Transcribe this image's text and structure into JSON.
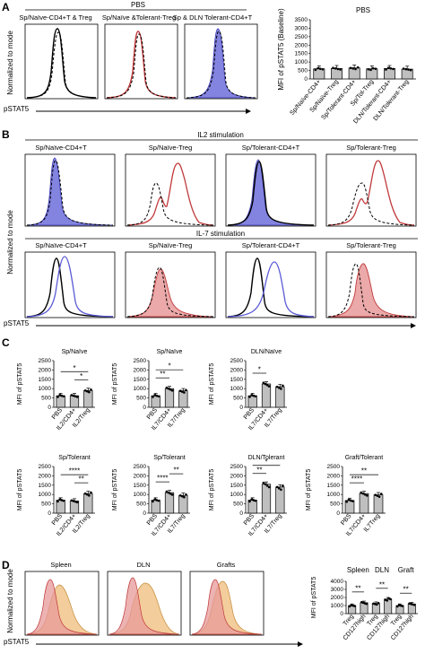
{
  "panel_labels": {
    "a": "A",
    "b": "B",
    "c": "C",
    "d": "D"
  },
  "axis_text": {
    "normalized_to_mode": "Normalized to mode",
    "pstat5": "pSTAT5",
    "mfi_pstat5": "MFI of pSTAT5",
    "mfi_pstat5_baseline": "MFI of pSTAT5 (Baseline)"
  },
  "panel_a": {
    "group_title": "PBS",
    "histograms": [
      {
        "title": "Sp/Naïve-CD4+T & Treg"
      },
      {
        "title": "Sp/Naïve &Tolerant-Treg"
      },
      {
        "title": "Sp & DLN Tolerant-CD4+T"
      }
    ]
  },
  "panel_b": {
    "row1_title": "IL2 stimulation",
    "row2_title": "IL-7 stimulation",
    "row1": [
      {
        "title": "Sp/Naïve-CD4+T"
      },
      {
        "title": "Sp/Naïve-Treg"
      },
      {
        "title": "Sp/Tolerant-CD4+T"
      },
      {
        "title": "Sp/Tolerant-Treg"
      }
    ],
    "row2": [
      {
        "title": "Sp/Naïve-CD4+T"
      },
      {
        "title": "Sp/Naïve-Treg"
      },
      {
        "title": "Sp/Tolerant-CD4+T"
      },
      {
        "title": "Sp/Tolerant-Treg"
      }
    ]
  },
  "panel_d": {
    "histograms": [
      {
        "title": "Spleen"
      },
      {
        "title": "DLN"
      },
      {
        "title": "Grafts"
      }
    ]
  },
  "colors": {
    "blue_fill": "#5a5ad6",
    "red": "#c0393b",
    "red_fill": "#e79a9a",
    "orange_fill": "#f1c48a",
    "bar": "#bfbfbf"
  },
  "chart_data": [
    {
      "type": "bar",
      "title": "PBS",
      "ylabel": "MFI of pSTAT5 (Baseline)",
      "ylim": [
        0,
        3500
      ],
      "yticks": [
        0,
        500,
        1000,
        1500,
        2000,
        2500,
        3000,
        3500
      ],
      "categories": [
        "Sp/Naïve-CD4+",
        "Sp/Naïve-Treg",
        "Sp/Tolerant-CD4+",
        "Sp/Tol-Treg",
        "DLN/Tolerant-CD4+",
        "DLN/Tolerant-Treg"
      ],
      "values": [
        600,
        620,
        650,
        600,
        620,
        580
      ],
      "sig": []
    },
    {
      "type": "bar",
      "title": "Sp/Naïve",
      "ylabel": "MFI of pSTAT5",
      "ylim": [
        0,
        2500
      ],
      "yticks": [
        0,
        500,
        1000,
        1500,
        2000,
        2500
      ],
      "categories": [
        "PBS",
        "IL2/CD4+",
        "IL2/Treg"
      ],
      "values": [
        620,
        620,
        900
      ],
      "sig": [
        {
          "from": 0,
          "to": 2,
          "label": "*",
          "level": 1
        },
        {
          "from": 1,
          "to": 2,
          "label": "*",
          "level": 0
        }
      ]
    },
    {
      "type": "bar",
      "title": "Sp/Naïve",
      "ylabel": "MFI of pSTAT5",
      "ylim": [
        0,
        2500
      ],
      "yticks": [
        0,
        500,
        1000,
        1500,
        2000,
        2500
      ],
      "categories": [
        "PBS",
        "IL7/CD4+",
        "IL7/Treg"
      ],
      "values": [
        620,
        1000,
        880
      ],
      "sig": [
        {
          "from": 0,
          "to": 1,
          "label": "**",
          "level": 0
        },
        {
          "from": 0,
          "to": 2,
          "label": "*",
          "level": 1
        }
      ]
    },
    {
      "type": "bar",
      "title": "DLN/Naïve",
      "ylabel": "MFI of pSTAT5",
      "ylim": [
        0,
        2500
      ],
      "yticks": [
        0,
        500,
        1000,
        1500,
        2000,
        2500
      ],
      "categories": [
        "PBS",
        "IL7/CD4+",
        "IL7/Treg"
      ],
      "values": [
        620,
        1250,
        1100
      ],
      "sig": [
        {
          "from": 0,
          "to": 1,
          "label": "*",
          "level": 0
        }
      ]
    },
    {
      "type": "bar",
      "title": "Sp/Tolerant",
      "ylabel": "MFI of pSTAT5",
      "ylim": [
        0,
        2500
      ],
      "yticks": [
        0,
        500,
        1000,
        1500,
        2000,
        2500
      ],
      "categories": [
        "PBS",
        "IL2/CD4+",
        "IL2/Treg"
      ],
      "values": [
        700,
        650,
        1050
      ],
      "sig": [
        {
          "from": 0,
          "to": 2,
          "label": "****",
          "level": 1
        },
        {
          "from": 1,
          "to": 2,
          "label": "**",
          "level": 0
        }
      ]
    },
    {
      "type": "bar",
      "title": "Sp/Tolerant",
      "ylabel": "MFI of pSTAT5",
      "ylim": [
        0,
        2500
      ],
      "yticks": [
        0,
        500,
        1000,
        1500,
        2000,
        2500
      ],
      "categories": [
        "PBS",
        "IL7/CD4+",
        "IL7/Treg"
      ],
      "values": [
        700,
        1100,
        950
      ],
      "sig": [
        {
          "from": 0,
          "to": 1,
          "label": "****",
          "level": 0
        },
        {
          "from": 1,
          "to": 2,
          "label": "**",
          "level": 1
        }
      ]
    },
    {
      "type": "bar",
      "title": "DLN/Tolerant",
      "ylabel": "MFI of pSTAT5",
      "ylim": [
        0,
        2500
      ],
      "yticks": [
        0,
        500,
        1000,
        1500,
        2000,
        2500
      ],
      "categories": [
        "PBS",
        "IL7/CD4+",
        "IL7/Treg"
      ],
      "values": [
        700,
        1550,
        1400
      ],
      "sig": [
        {
          "from": 0,
          "to": 1,
          "label": "**",
          "level": 0
        },
        {
          "from": 0,
          "to": 2,
          "label": "*",
          "level": 1
        }
      ]
    },
    {
      "type": "bar",
      "title": "Graft/Tolerant",
      "ylabel": "MFI of pSTAT5",
      "ylim": [
        0,
        2500
      ],
      "yticks": [
        0,
        500,
        1000,
        1500,
        2000,
        2500
      ],
      "categories": [
        "PBS",
        "IL7/CD4+",
        "IL7Treg"
      ],
      "values": [
        680,
        1050,
        980
      ],
      "sig": [
        {
          "from": 0,
          "to": 1,
          "label": "****",
          "level": 0
        },
        {
          "from": 0,
          "to": 2,
          "label": "**",
          "level": 1
        }
      ]
    },
    {
      "type": "bar",
      "ylabel": "MFI of pSTAT5",
      "ylim": [
        0,
        4000
      ],
      "yticks": [
        0,
        1000,
        2000,
        3000,
        4000
      ],
      "groups": [
        "Spleen",
        "DLN",
        "Graft"
      ],
      "categories": [
        "Treg",
        "CD127high",
        "Treg",
        "CD127high",
        "Treg",
        "CD127high"
      ],
      "values": [
        1000,
        1350,
        1250,
        1800,
        1000,
        1200
      ],
      "sig": [
        {
          "from": 0,
          "to": 1,
          "label": "**",
          "level": 0
        },
        {
          "from": 2,
          "to": 3,
          "label": "**",
          "level": 0
        },
        {
          "from": 4,
          "to": 5,
          "label": "**",
          "level": 0
        }
      ]
    }
  ]
}
